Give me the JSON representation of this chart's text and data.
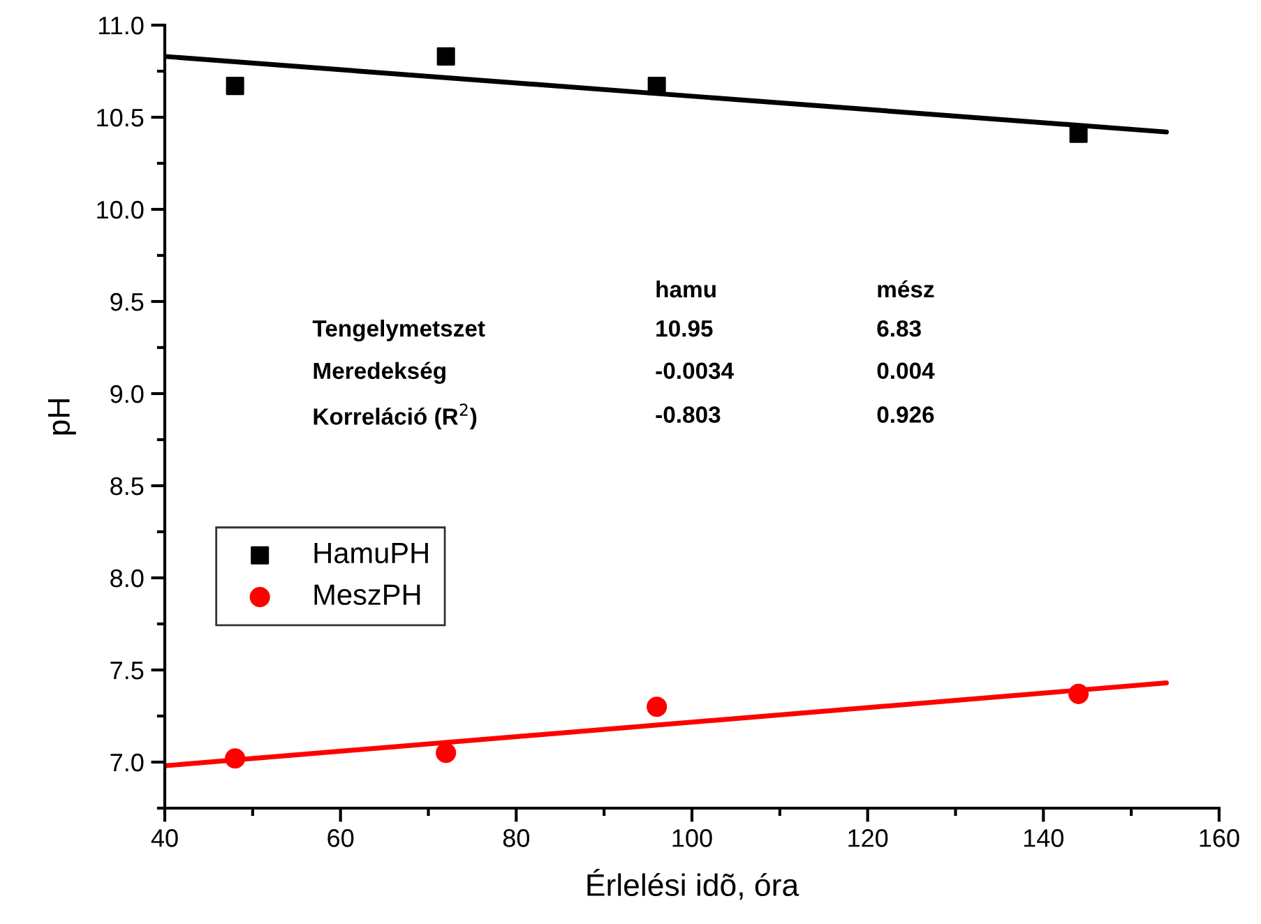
{
  "chart_data": {
    "type": "scatter",
    "xlabel": "Érlelési idõ, óra",
    "ylabel": "pH",
    "series": [
      {
        "name": "HamuPH",
        "marker": "square",
        "color": "#000000",
        "x": [
          48,
          72,
          96,
          144
        ],
        "values": [
          10.67,
          10.83,
          10.67,
          10.41
        ]
      },
      {
        "name": "MeszPH",
        "marker": "circle",
        "color": "#ff0000",
        "x": [
          48,
          72,
          96,
          144
        ],
        "values": [
          7.02,
          7.05,
          7.3,
          7.37
        ]
      },
      {
        "type": "line",
        "color": "#000000",
        "x": [
          40,
          154
        ],
        "values": [
          10.83,
          10.42
        ]
      },
      {
        "type": "line",
        "color": "#ff0000",
        "x": [
          40,
          154
        ],
        "values": [
          6.98,
          7.43
        ]
      }
    ],
    "annotations": [
      "hamu",
      "mész",
      "Tengelymetszet",
      "10.95",
      "6.83",
      "Meredekség",
      "-0.0034",
      "0.004",
      "Korreláció (R$^{2}$)",
      "-0.803",
      "0.926"
    ],
    "xlim": [
      40,
      160
    ],
    "xticks": [
      40,
      60,
      80,
      100,
      120,
      140,
      160
    ],
    "ylim": [
      6.75,
      11.0
    ],
    "yticks": [
      {
        "value": 7.0,
        "label": "7.0"
      },
      {
        "value": 7.5,
        "label": "7.5"
      },
      {
        "value": 8.0,
        "label": "8.0"
      },
      {
        "value": 8.5,
        "label": "8.5"
      },
      {
        "value": 9.0,
        "label": "9.0"
      },
      {
        "value": 9.5,
        "label": "9.5"
      },
      {
        "value": 10.0,
        "label": "10.0"
      },
      {
        "value": 10.5,
        "label": "10.5"
      },
      {
        "value": 11.0,
        "label": "11.0"
      }
    ],
    "legend": "lower left",
    "grid": false
  }
}
